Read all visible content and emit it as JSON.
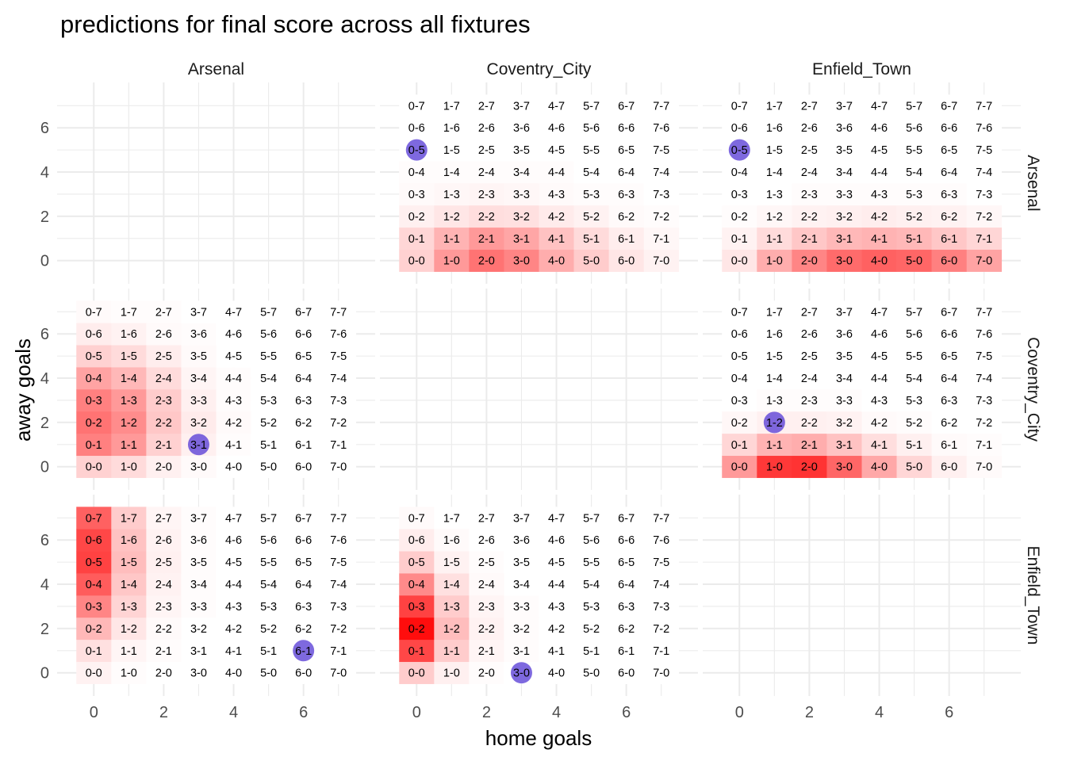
{
  "chart_data": {
    "type": "heatmap",
    "title": "predictions for final score across all fixtures",
    "xlabel": "home goals",
    "ylabel": "away goals",
    "x_ticks": [
      0,
      2,
      4,
      6
    ],
    "y_ticks": [
      0,
      2,
      4,
      6
    ],
    "xlim": [
      -0.5,
      7.5
    ],
    "ylim": [
      -0.5,
      7.5
    ],
    "grid": true,
    "column_facets": [
      "Arsenal",
      "Coventry_City",
      "Enfield_Town"
    ],
    "row_facets": [
      "Arsenal",
      "Coventry_City",
      "Enfield_Town"
    ],
    "fill_colors": {
      "low": "#ffffff",
      "high": "#ff0000"
    },
    "highlight_color": "#5a3fd6",
    "panels": [
      {
        "home": "Coventry_City",
        "away": "Arsenal",
        "highlight": [
          0,
          5
        ],
        "probabilities": [
          [
            0.18,
            0.16,
            0.06,
            0.02,
            0.01,
            0,
            0,
            0
          ],
          [
            0.4,
            0.3,
            0.1,
            0.03,
            0.01,
            0,
            0,
            0
          ],
          [
            0.55,
            0.4,
            0.13,
            0.04,
            0.01,
            0,
            0,
            0
          ],
          [
            0.48,
            0.35,
            0.12,
            0.03,
            0.01,
            0,
            0,
            0
          ],
          [
            0.32,
            0.24,
            0.08,
            0.02,
            0.01,
            0,
            0,
            0
          ],
          [
            0.2,
            0.14,
            0.05,
            0.01,
            0,
            0,
            0,
            0
          ],
          [
            0.1,
            0.07,
            0.02,
            0.01,
            0,
            0,
            0,
            0
          ],
          [
            0.05,
            0.03,
            0.01,
            0,
            0,
            0,
            0,
            0
          ]
        ]
      },
      {
        "home": "Enfield_Town",
        "away": "Arsenal",
        "highlight": [
          0,
          5
        ],
        "probabilities": [
          [
            0.1,
            0.05,
            0.01,
            0,
            0,
            0,
            0,
            0
          ],
          [
            0.32,
            0.14,
            0.03,
            0,
            0,
            0,
            0,
            0
          ],
          [
            0.48,
            0.22,
            0.05,
            0.01,
            0,
            0,
            0,
            0
          ],
          [
            0.58,
            0.28,
            0.06,
            0.01,
            0,
            0,
            0,
            0
          ],
          [
            0.62,
            0.3,
            0.07,
            0.01,
            0,
            0,
            0,
            0
          ],
          [
            0.6,
            0.28,
            0.06,
            0.01,
            0,
            0,
            0,
            0
          ],
          [
            0.5,
            0.22,
            0.05,
            0.01,
            0,
            0,
            0,
            0
          ],
          [
            0.36,
            0.16,
            0.03,
            0,
            0,
            0,
            0,
            0
          ]
        ]
      },
      {
        "home": "Arsenal",
        "away": "Coventry_City",
        "highlight": [
          3,
          1
        ],
        "probabilities": [
          [
            0.18,
            0.5,
            0.55,
            0.5,
            0.36,
            0.18,
            0.07,
            0.02
          ],
          [
            0.14,
            0.4,
            0.45,
            0.4,
            0.28,
            0.14,
            0.05,
            0.01
          ],
          [
            0.06,
            0.18,
            0.22,
            0.2,
            0.14,
            0.07,
            0.02,
            0.01
          ],
          [
            0.02,
            0.06,
            0.08,
            0.06,
            0.04,
            0.02,
            0.01,
            0
          ],
          [
            0,
            0.01,
            0.02,
            0.01,
            0.01,
            0,
            0,
            0
          ],
          [
            0,
            0,
            0,
            0,
            0,
            0,
            0,
            0
          ],
          [
            0,
            0,
            0,
            0,
            0,
            0,
            0,
            0
          ],
          [
            0,
            0,
            0,
            0,
            0,
            0,
            0,
            0
          ]
        ]
      },
      {
        "home": "Enfield_Town",
        "away": "Coventry_City",
        "highlight": [
          1,
          2
        ],
        "probabilities": [
          [
            0.4,
            0.16,
            0.03,
            0,
            0,
            0,
            0,
            0
          ],
          [
            0.78,
            0.3,
            0.06,
            0.01,
            0,
            0,
            0,
            0
          ],
          [
            0.8,
            0.32,
            0.06,
            0.01,
            0,
            0,
            0,
            0
          ],
          [
            0.6,
            0.24,
            0.05,
            0.01,
            0,
            0,
            0,
            0
          ],
          [
            0.34,
            0.13,
            0.02,
            0,
            0,
            0,
            0,
            0
          ],
          [
            0.16,
            0.06,
            0.01,
            0,
            0,
            0,
            0,
            0
          ],
          [
            0.06,
            0.02,
            0,
            0,
            0,
            0,
            0,
            0
          ],
          [
            0.02,
            0.01,
            0,
            0,
            0,
            0,
            0,
            0
          ]
        ]
      },
      {
        "home": "Arsenal",
        "away": "Enfield_Town",
        "highlight": [
          6,
          1
        ],
        "probabilities": [
          [
            0.05,
            0.12,
            0.28,
            0.48,
            0.64,
            0.74,
            0.72,
            0.62
          ],
          [
            0.01,
            0.04,
            0.1,
            0.17,
            0.22,
            0.26,
            0.24,
            0.2
          ],
          [
            0,
            0.01,
            0.02,
            0.04,
            0.05,
            0.06,
            0.05,
            0.04
          ],
          [
            0,
            0,
            0,
            0.01,
            0.01,
            0.01,
            0.01,
            0.01
          ],
          [
            0,
            0,
            0,
            0,
            0,
            0,
            0,
            0
          ],
          [
            0,
            0,
            0,
            0,
            0,
            0,
            0,
            0
          ],
          [
            0,
            0,
            0,
            0,
            0,
            0,
            0,
            0
          ],
          [
            0,
            0,
            0,
            0,
            0,
            0,
            0,
            0
          ]
        ]
      },
      {
        "home": "Coventry_City",
        "away": "Enfield_Town",
        "highlight": [
          3,
          0
        ],
        "probabilities": [
          [
            0.2,
            0.72,
            0.95,
            0.74,
            0.46,
            0.2,
            0.07,
            0.02
          ],
          [
            0.06,
            0.2,
            0.26,
            0.2,
            0.12,
            0.05,
            0.02,
            0
          ],
          [
            0.01,
            0.04,
            0.05,
            0.04,
            0.02,
            0.01,
            0,
            0
          ],
          [
            0,
            0.01,
            0.01,
            0.01,
            0,
            0,
            0,
            0
          ],
          [
            0,
            0,
            0,
            0,
            0,
            0,
            0,
            0
          ],
          [
            0,
            0,
            0,
            0,
            0,
            0,
            0,
            0
          ],
          [
            0,
            0,
            0,
            0,
            0,
            0,
            0,
            0
          ],
          [
            0,
            0,
            0,
            0,
            0,
            0,
            0,
            0
          ]
        ]
      }
    ]
  }
}
